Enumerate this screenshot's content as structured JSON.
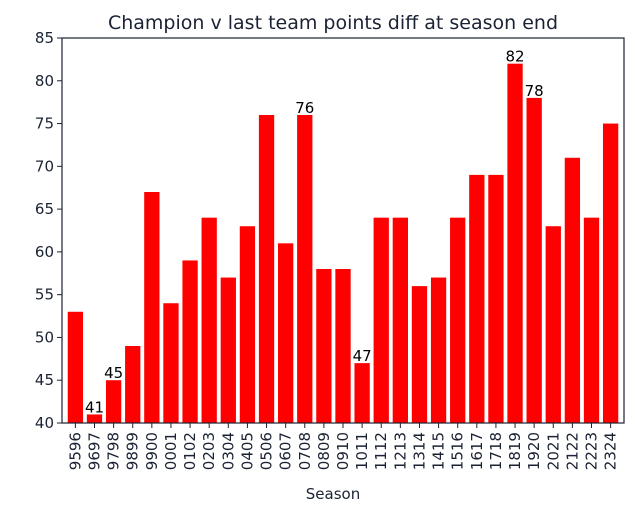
{
  "chart_data": {
    "type": "bar",
    "title": "Champion v last team points diff at season end",
    "xlabel": "Season",
    "ylabel": "",
    "ylim": [
      40,
      85
    ],
    "yticks": [
      40,
      45,
      50,
      55,
      60,
      65,
      70,
      75,
      80,
      85
    ],
    "grid": false,
    "legend": "none",
    "bar_color": "#ff0000",
    "categories": [
      "9596",
      "9697",
      "9798",
      "9899",
      "9900",
      "0001",
      "0102",
      "0203",
      "0304",
      "0405",
      "0506",
      "0607",
      "0708",
      "0809",
      "0910",
      "1011",
      "1112",
      "1213",
      "1314",
      "1415",
      "1516",
      "1617",
      "1718",
      "1819",
      "1920",
      "2021",
      "2122",
      "2223",
      "2324"
    ],
    "values": [
      53,
      41,
      45,
      49,
      67,
      54,
      59,
      64,
      57,
      63,
      76,
      61,
      76,
      58,
      58,
      47,
      64,
      64,
      56,
      57,
      64,
      69,
      69,
      82,
      78,
      63,
      71,
      64,
      75
    ],
    "data_labels": [
      {
        "category": "9697",
        "text": "41"
      },
      {
        "category": "9798",
        "text": "45"
      },
      {
        "category": "0708",
        "text": "76"
      },
      {
        "category": "1011",
        "text": "47"
      },
      {
        "category": "1819",
        "text": "82"
      },
      {
        "category": "1920",
        "text": "78"
      }
    ]
  }
}
